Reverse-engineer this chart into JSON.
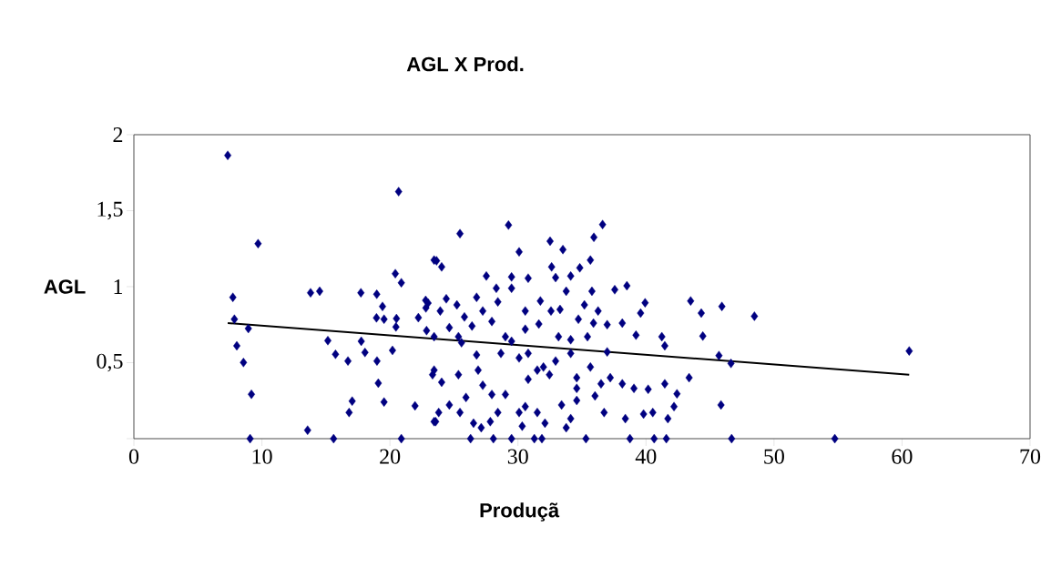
{
  "chart_data": {
    "type": "scatter",
    "title": "AGL X Prod.",
    "xlabel": "Produçã",
    "ylabel": "AGL",
    "xlim": [
      0,
      70
    ],
    "xticks": [
      0,
      10,
      20,
      30,
      40,
      50,
      60,
      70
    ],
    "ylim": [
      0,
      2
    ],
    "yticks": [
      {
        "value": 0,
        "label": null
      },
      {
        "value": 0.5,
        "label": "0,5"
      },
      {
        "value": 1,
        "label": "1"
      },
      {
        "value": 1.5,
        "label": "1,5"
      },
      {
        "value": 2,
        "label": "2"
      }
    ],
    "marker": "diamond",
    "grid": false,
    "legend": false,
    "series": [
      {
        "type": "scatter",
        "color": "#000080",
        "x": [
          7.33,
          20.68,
          9.7,
          7.73,
          7.85,
          8.94,
          8.04,
          8.56,
          9.18,
          9.08,
          13.8,
          14.51,
          13.57,
          15.6,
          15.15,
          15.75,
          16.72,
          17.73,
          17.76,
          18.05,
          17.05,
          16.81,
          18.97,
          19.42,
          18.95,
          19.54,
          18.99,
          19.09,
          19.54,
          20.42,
          20.89,
          20.51,
          20.47,
          20.2,
          21.96,
          20.89,
          22.22,
          22.79,
          22.81,
          23.45,
          22.86,
          23.33,
          23.45,
          23.64,
          24.04,
          25.47,
          29.26,
          30.09,
          32.51,
          33.51,
          35.93,
          36.61,
          35.66,
          34.83,
          34.12,
          32.63,
          32.94,
          30.8,
          29.5,
          29.5,
          27.53,
          28.31,
          26.77,
          24.4,
          22.98,
          25.23,
          23.93,
          25.82,
          27.25,
          28.43,
          27.96,
          26.41,
          24.64,
          23.45,
          25.35,
          29.02,
          29.5,
          30.57,
          31.75,
          32.58,
          33.29,
          33.77,
          35.78,
          35.19,
          36.26,
          34.72,
          35.9,
          31.63,
          30.57,
          33.17,
          34.12,
          35.43,
          36.97,
          37.56,
          38.51,
          38.15,
          39.22,
          39.93,
          39.58,
          41.24,
          41.47,
          43.49,
          44.32,
          44.44,
          45.93,
          45.7,
          46.64,
          36.97,
          34.12,
          35.66,
          32.94,
          31.99,
          30.8,
          30.09,
          28.67,
          26.77,
          25.59,
          23.45,
          24.04,
          25.35,
          26.89,
          27.25,
          27.96,
          29.02,
          30.8,
          31.51,
          32.46,
          34.59,
          34.59,
          36.49,
          37.21,
          38.15,
          39.06,
          40.17,
          41.47,
          42.42,
          43.37,
          42.19,
          41.71,
          40.53,
          39.81,
          38.39,
          36.73,
          36.02,
          34.59,
          34.12,
          33.41,
          33.77,
          32.11,
          31.51,
          30.57,
          30.09,
          30.33,
          28.43,
          27.84,
          27.13,
          26.53,
          25.94,
          25.47,
          24.64,
          23.81,
          23.57,
          26.3,
          28.08,
          29.5,
          31.28,
          31.87,
          35.31,
          38.75,
          40.64,
          41.59,
          46.69,
          45.86,
          48.47,
          60.56,
          54.75
        ],
        "values": [
          1.864,
          1.625,
          1.283,
          0.93,
          0.786,
          0.725,
          0.611,
          0.501,
          0.292,
          0,
          0.96,
          0.97,
          0.056,
          0,
          0.645,
          0.555,
          0.511,
          0.96,
          0.641,
          0.567,
          0.247,
          0.172,
          0.95,
          0.87,
          0.795,
          0.786,
          0.511,
          0.365,
          0.241,
          1.086,
          1.026,
          0.79,
          0.735,
          0.581,
          0.216,
          0,
          0.796,
          0.91,
          0.86,
          1.175,
          0.711,
          0.421,
          0.112,
          1.17,
          1.13,
          1.349,
          1.405,
          1.229,
          1.299,
          1.244,
          1.325,
          1.409,
          1.175,
          1.124,
          1.07,
          1.13,
          1.06,
          1.056,
          1.064,
          0.99,
          1.07,
          0.99,
          0.93,
          0.92,
          0.892,
          0.88,
          0.84,
          0.801,
          0.84,
          0.9,
          0.771,
          0.741,
          0.731,
          0.671,
          0.671,
          0.671,
          0.641,
          0.84,
          0.906,
          0.84,
          0.85,
          0.97,
          0.97,
          0.88,
          0.84,
          0.786,
          0.76,
          0.754,
          0.72,
          0.671,
          0.651,
          0.671,
          0.75,
          0.98,
          1.006,
          0.76,
          0.681,
          0.894,
          0.826,
          0.671,
          0.611,
          0.906,
          0.826,
          0.675,
          0.87,
          0.547,
          0.495,
          0.571,
          0.561,
          0.471,
          0.511,
          0.471,
          0.561,
          0.531,
          0.561,
          0.551,
          0.631,
          0.451,
          0.371,
          0.421,
          0.451,
          0.351,
          0.291,
          0.291,
          0.391,
          0.451,
          0.421,
          0.401,
          0.331,
          0.361,
          0.401,
          0.361,
          0.331,
          0.325,
          0.361,
          0.295,
          0.401,
          0.211,
          0.132,
          0.172,
          0.162,
          0.132,
          0.172,
          0.281,
          0.251,
          0.132,
          0.222,
          0.072,
          0.102,
          0.172,
          0.211,
          0.172,
          0.082,
          0.172,
          0.112,
          0.072,
          0.102,
          0.271,
          0.172,
          0.222,
          0.172,
          0.112,
          0,
          0,
          0,
          0,
          0,
          0,
          0,
          0,
          0,
          0,
          0.222,
          0.806,
          0.577,
          0
        ]
      },
      {
        "type": "line",
        "color": "#000000",
        "marker": "none",
        "x": [
          7.33,
          60.56
        ],
        "values": [
          0.76,
          0.421
        ]
      }
    ]
  }
}
